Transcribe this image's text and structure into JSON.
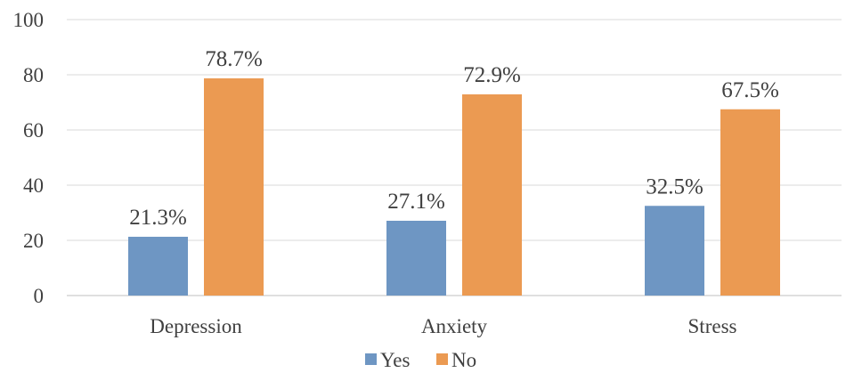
{
  "chart_data": {
    "type": "bar",
    "categories": [
      "Depression",
      "Anxiety",
      "Stress"
    ],
    "series": [
      {
        "name": "Yes",
        "values": [
          21.3,
          27.1,
          32.5
        ],
        "labels": [
          "21.3%",
          "27.1%",
          "32.5%"
        ],
        "color": "#6E96C3"
      },
      {
        "name": "No",
        "values": [
          78.7,
          72.9,
          67.5
        ],
        "labels": [
          "78.7%",
          "72.9%",
          "67.5%"
        ],
        "color": "#EB9A52"
      }
    ],
    "yticks": [
      "0",
      "20",
      "40",
      "60",
      "80",
      "100"
    ],
    "ylim": [
      0,
      100
    ],
    "grid": true,
    "legend": "bottom",
    "title": "",
    "xlabel": "",
    "ylabel": ""
  }
}
